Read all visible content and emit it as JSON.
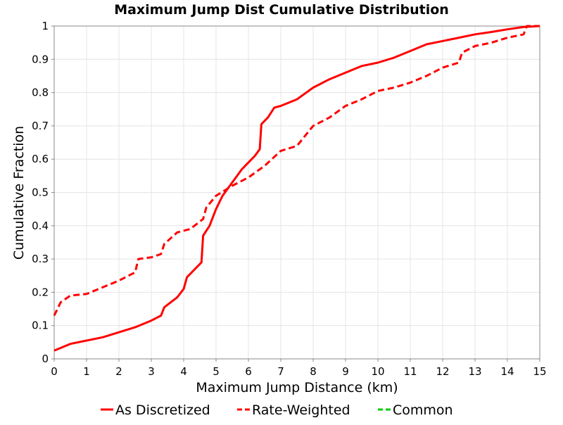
{
  "chart_data": {
    "type": "line",
    "title": "Maximum Jump Dist Cumulative Distribution",
    "xlabel": "Maximum Jump Distance (km)",
    "ylabel": "Cumulative Fraction",
    "xlim": [
      0,
      15
    ],
    "ylim": [
      0,
      1
    ],
    "xticks": [
      "0",
      "1",
      "2",
      "3",
      "4",
      "5",
      "6",
      "7",
      "8",
      "9",
      "10",
      "11",
      "12",
      "13",
      "14",
      "15"
    ],
    "yticks": [
      "0",
      "0.1",
      "0.2",
      "0.3",
      "0.4",
      "0.5",
      "0.6",
      "0.7",
      "0.8",
      "0.9",
      "1"
    ],
    "grid": true,
    "legend_position": "bottom",
    "series": [
      {
        "name": "As Discretized",
        "color": "#ff0000",
        "style": "solid",
        "x": [
          0,
          0.5,
          1.0,
          1.5,
          2.0,
          2.5,
          3.0,
          3.3,
          3.4,
          3.8,
          4.0,
          4.1,
          4.4,
          4.55,
          4.6,
          4.8,
          5.0,
          5.2,
          5.5,
          5.8,
          6.0,
          6.2,
          6.35,
          6.4,
          6.6,
          6.8,
          7.0,
          7.5,
          8.0,
          8.5,
          9.0,
          9.5,
          10.0,
          10.5,
          11.0,
          11.5,
          12.0,
          12.5,
          13.0,
          13.5,
          14.0,
          14.5,
          15.0
        ],
        "y": [
          0.025,
          0.045,
          0.055,
          0.065,
          0.08,
          0.095,
          0.115,
          0.13,
          0.155,
          0.185,
          0.21,
          0.245,
          0.275,
          0.29,
          0.37,
          0.4,
          0.45,
          0.49,
          0.53,
          0.57,
          0.59,
          0.61,
          0.63,
          0.705,
          0.725,
          0.755,
          0.76,
          0.78,
          0.815,
          0.84,
          0.86,
          0.88,
          0.89,
          0.905,
          0.925,
          0.945,
          0.955,
          0.965,
          0.975,
          0.982,
          0.99,
          0.997,
          1.0
        ]
      },
      {
        "name": "Rate-Weighted",
        "color": "#ff0000",
        "style": "dashed",
        "x": [
          0,
          0.2,
          0.5,
          1.0,
          1.5,
          2.0,
          2.5,
          2.6,
          3.0,
          3.3,
          3.4,
          3.8,
          4.2,
          4.6,
          4.7,
          5.0,
          5.5,
          6.0,
          6.5,
          7.0,
          7.5,
          8.0,
          8.5,
          9.0,
          9.5,
          10.0,
          10.5,
          11.0,
          11.5,
          12.0,
          12.5,
          12.6,
          13.0,
          13.5,
          14.0,
          14.5,
          14.6,
          15.0
        ],
        "y": [
          0.13,
          0.17,
          0.19,
          0.195,
          0.215,
          0.235,
          0.26,
          0.3,
          0.305,
          0.315,
          0.345,
          0.38,
          0.39,
          0.42,
          0.455,
          0.49,
          0.52,
          0.545,
          0.58,
          0.625,
          0.64,
          0.7,
          0.725,
          0.76,
          0.78,
          0.805,
          0.815,
          0.83,
          0.85,
          0.875,
          0.89,
          0.92,
          0.94,
          0.95,
          0.965,
          0.975,
          1.0,
          1.0
        ]
      },
      {
        "name": "Common",
        "color": "#00cc00",
        "style": "dashed",
        "x": [],
        "y": []
      }
    ]
  }
}
